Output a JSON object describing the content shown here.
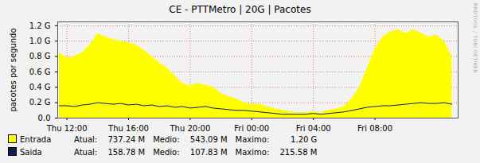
{
  "chart_data": {
    "type": "area",
    "title": "CE - PTTMetro | 20G | Pacotes",
    "y_label": "pacotes por segundo",
    "annotations": [
      "RRDTOOL / TOBI OETIKER"
    ],
    "x": [
      11.5,
      12,
      12.5,
      13,
      13.5,
      14,
      14.5,
      15,
      15.5,
      16,
      16.5,
      17,
      17.5,
      18,
      18.5,
      19,
      19.5,
      20,
      20.5,
      21,
      21.5,
      22,
      22.5,
      23,
      23.5,
      24,
      24.5,
      25,
      25.5,
      26,
      26.5,
      27,
      27.5,
      28,
      28.5,
      29,
      29.5,
      30,
      30.5,
      31,
      31.5,
      32,
      32.5,
      33,
      33.5,
      34,
      34.5,
      35,
      35.5,
      36,
      36.5,
      37
    ],
    "xlim": [
      11.4,
      37.4
    ],
    "xticks": [
      {
        "value": 12,
        "label": "Thu 12:00"
      },
      {
        "value": 16,
        "label": "Thu 16:00"
      },
      {
        "value": 20,
        "label": "Thu 20:00"
      },
      {
        "value": 24,
        "label": "Fri 00:00"
      },
      {
        "value": 28,
        "label": "Fri 04:00"
      },
      {
        "value": 32,
        "label": "Fri 08:00"
      }
    ],
    "ylim": [
      0,
      1.25
    ],
    "yticks": [
      {
        "value": 0,
        "label": "0.0"
      },
      {
        "value": 0.2,
        "label": "0.2 G"
      },
      {
        "value": 0.4,
        "label": "0.4 G"
      },
      {
        "value": 0.6,
        "label": "0.6 G"
      },
      {
        "value": 0.8,
        "label": "0.8 G"
      },
      {
        "value": 1.0,
        "label": "1.0 G"
      },
      {
        "value": 1.2,
        "label": "1.2 G"
      }
    ],
    "grid": true,
    "series": [
      {
        "name": "Entrada",
        "type": "area",
        "color": "#ffff00",
        "values": [
          0.85,
          0.78,
          0.8,
          0.85,
          0.95,
          1.1,
          1.05,
          1.02,
          1.0,
          0.98,
          0.95,
          0.88,
          0.8,
          0.72,
          0.65,
          0.55,
          0.45,
          0.42,
          0.45,
          0.43,
          0.4,
          0.32,
          0.28,
          0.25,
          0.2,
          0.18,
          0.18,
          0.15,
          0.12,
          0.1,
          0.08,
          0.07,
          0.07,
          0.08,
          0.07,
          0.1,
          0.12,
          0.15,
          0.25,
          0.4,
          0.65,
          0.9,
          1.05,
          1.12,
          1.15,
          1.1,
          1.15,
          1.1,
          1.05,
          1.08,
          1.0,
          0.8
        ],
        "stats": [
          {
            "label": "Atual:",
            "value": "737.24 M"
          },
          {
            "label": "Medio:",
            "value": "543.09 M"
          },
          {
            "label": "Maximo:",
            "value": "1.20 G"
          }
        ]
      },
      {
        "name": "Saida",
        "type": "line",
        "color": "#0b1f4d",
        "values": [
          0.16,
          0.16,
          0.15,
          0.17,
          0.18,
          0.2,
          0.19,
          0.18,
          0.19,
          0.17,
          0.18,
          0.16,
          0.17,
          0.15,
          0.16,
          0.14,
          0.15,
          0.13,
          0.14,
          0.15,
          0.13,
          0.12,
          0.11,
          0.1,
          0.1,
          0.09,
          0.08,
          0.07,
          0.06,
          0.05,
          0.05,
          0.05,
          0.05,
          0.06,
          0.05,
          0.06,
          0.07,
          0.08,
          0.1,
          0.12,
          0.14,
          0.15,
          0.16,
          0.16,
          0.17,
          0.18,
          0.19,
          0.2,
          0.19,
          0.19,
          0.2,
          0.18
        ],
        "stats": [
          {
            "label": "Atual:",
            "value": "158.78 M"
          },
          {
            "label": "Medio:",
            "value": "107.83 M"
          },
          {
            "label": "Maximo:",
            "value": "215.58 M"
          }
        ]
      }
    ]
  }
}
